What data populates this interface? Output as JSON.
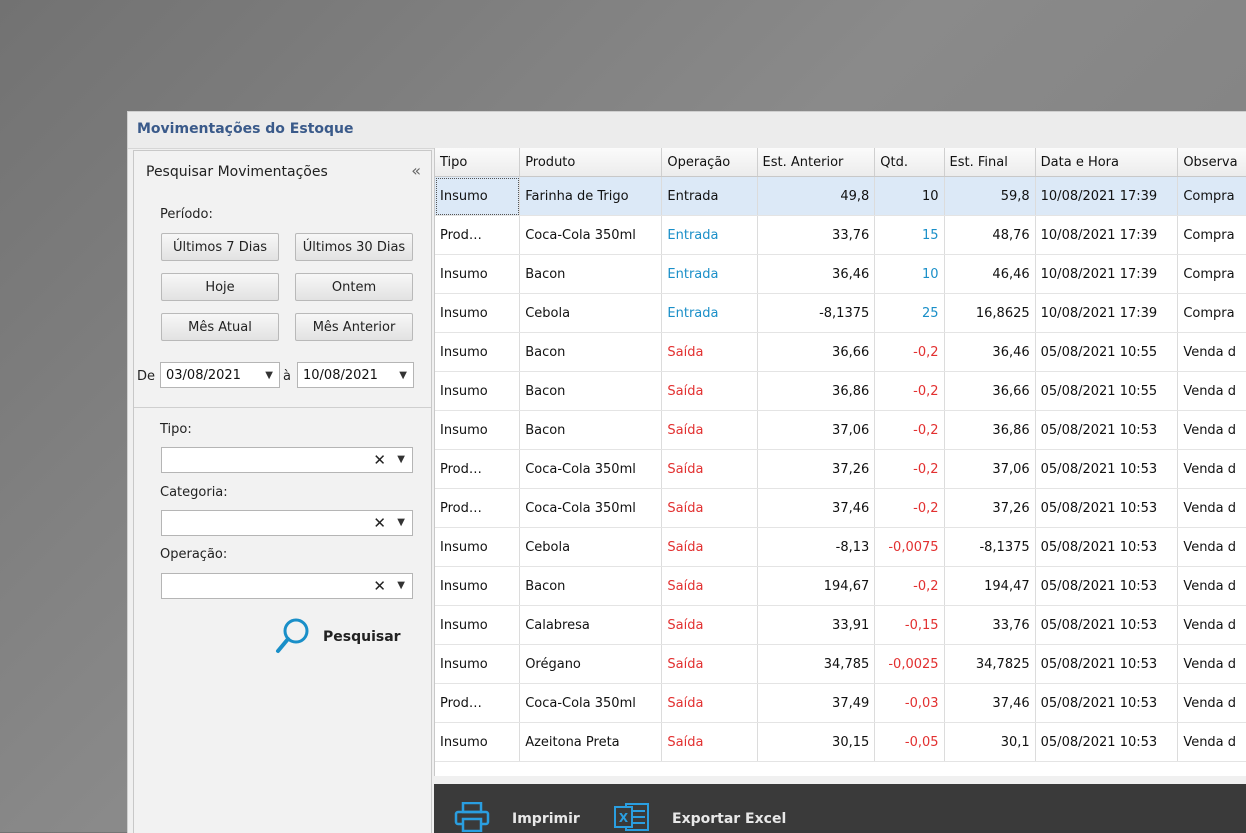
{
  "window": {
    "title": "Movimentações do Estoque"
  },
  "panel": {
    "header": "Pesquisar Movimentações",
    "collapse_icon": "«",
    "periodo_label": "Período:",
    "buttons": {
      "ultimos7": "Últimos 7 Dias",
      "ultimos30": "Últimos 30 Dias",
      "hoje": "Hoje",
      "ontem": "Ontem",
      "mes_atual": "Mês Atual",
      "mes_anterior": "Mês Anterior"
    },
    "date_from_label": "De",
    "date_from": "03/08/2021",
    "date_to_label": "à",
    "date_to": "10/08/2021",
    "tipo_label": "Tipo:",
    "categoria_label": "Categoria:",
    "operacao_label": "Operação:",
    "clear_icon": "✕",
    "search_label": "Pesquisar"
  },
  "grid": {
    "columns": [
      "Tipo",
      "Produto",
      "Operação",
      "Est. Anterior",
      "Qtd.",
      "Est. Final",
      "Data e Hora",
      "Observa"
    ],
    "rows": [
      {
        "tipo": "Insumo",
        "produto": "Farinha de Trigo",
        "operacao": "Entrada",
        "anterior": "49,8",
        "qtd": "10",
        "final": "59,8",
        "data": "10/08/2021 17:39",
        "obs": "Compra"
      },
      {
        "tipo": "Prod…",
        "produto": "Coca-Cola 350ml",
        "operacao": "Entrada",
        "anterior": "33,76",
        "qtd": "15",
        "final": "48,76",
        "data": "10/08/2021 17:39",
        "obs": "Compra"
      },
      {
        "tipo": "Insumo",
        "produto": "Bacon",
        "operacao": "Entrada",
        "anterior": "36,46",
        "qtd": "10",
        "final": "46,46",
        "data": "10/08/2021 17:39",
        "obs": "Compra"
      },
      {
        "tipo": "Insumo",
        "produto": "Cebola",
        "operacao": "Entrada",
        "anterior": "-8,1375",
        "qtd": "25",
        "final": "16,8625",
        "data": "10/08/2021 17:39",
        "obs": "Compra"
      },
      {
        "tipo": "Insumo",
        "produto": "Bacon",
        "operacao": "Saída",
        "anterior": "36,66",
        "qtd": "-0,2",
        "final": "36,46",
        "data": "05/08/2021 10:55",
        "obs": "Venda d"
      },
      {
        "tipo": "Insumo",
        "produto": "Bacon",
        "operacao": "Saída",
        "anterior": "36,86",
        "qtd": "-0,2",
        "final": "36,66",
        "data": "05/08/2021 10:55",
        "obs": "Venda d"
      },
      {
        "tipo": "Insumo",
        "produto": "Bacon",
        "operacao": "Saída",
        "anterior": "37,06",
        "qtd": "-0,2",
        "final": "36,86",
        "data": "05/08/2021 10:53",
        "obs": "Venda d"
      },
      {
        "tipo": "Prod…",
        "produto": "Coca-Cola 350ml",
        "operacao": "Saída",
        "anterior": "37,26",
        "qtd": "-0,2",
        "final": "37,06",
        "data": "05/08/2021 10:53",
        "obs": "Venda d"
      },
      {
        "tipo": "Prod…",
        "produto": "Coca-Cola 350ml",
        "operacao": "Saída",
        "anterior": "37,46",
        "qtd": "-0,2",
        "final": "37,26",
        "data": "05/08/2021 10:53",
        "obs": "Venda d"
      },
      {
        "tipo": "Insumo",
        "produto": "Cebola",
        "operacao": "Saída",
        "anterior": "-8,13",
        "qtd": "-0,0075",
        "final": "-8,1375",
        "data": "05/08/2021 10:53",
        "obs": "Venda d"
      },
      {
        "tipo": "Insumo",
        "produto": "Bacon",
        "operacao": "Saída",
        "anterior": "194,67",
        "qtd": "-0,2",
        "final": "194,47",
        "data": "05/08/2021 10:53",
        "obs": "Venda d"
      },
      {
        "tipo": "Insumo",
        "produto": "Calabresa",
        "operacao": "Saída",
        "anterior": "33,91",
        "qtd": "-0,15",
        "final": "33,76",
        "data": "05/08/2021 10:53",
        "obs": "Venda d"
      },
      {
        "tipo": "Insumo",
        "produto": "Orégano",
        "operacao": "Saída",
        "anterior": "34,785",
        "qtd": "-0,0025",
        "final": "34,7825",
        "data": "05/08/2021 10:53",
        "obs": "Venda d"
      },
      {
        "tipo": "Prod…",
        "produto": "Coca-Cola 350ml",
        "operacao": "Saída",
        "anterior": "37,49",
        "qtd": "-0,03",
        "final": "37,46",
        "data": "05/08/2021 10:53",
        "obs": "Venda d"
      },
      {
        "tipo": "Insumo",
        "produto": "Azeitona Preta",
        "operacao": "Saída",
        "anterior": "30,15",
        "qtd": "-0,05",
        "final": "30,1",
        "data": "05/08/2021 10:53",
        "obs": "Venda d"
      }
    ]
  },
  "toolbar": {
    "print_label": "Imprimir",
    "export_label": "Exportar Excel",
    "excel_glyph": "X"
  },
  "colors": {
    "entrada": "#1a8fc8",
    "saida": "#e23030",
    "toolbar_bg": "#3a3a3a",
    "selection": "#dce9f7"
  }
}
